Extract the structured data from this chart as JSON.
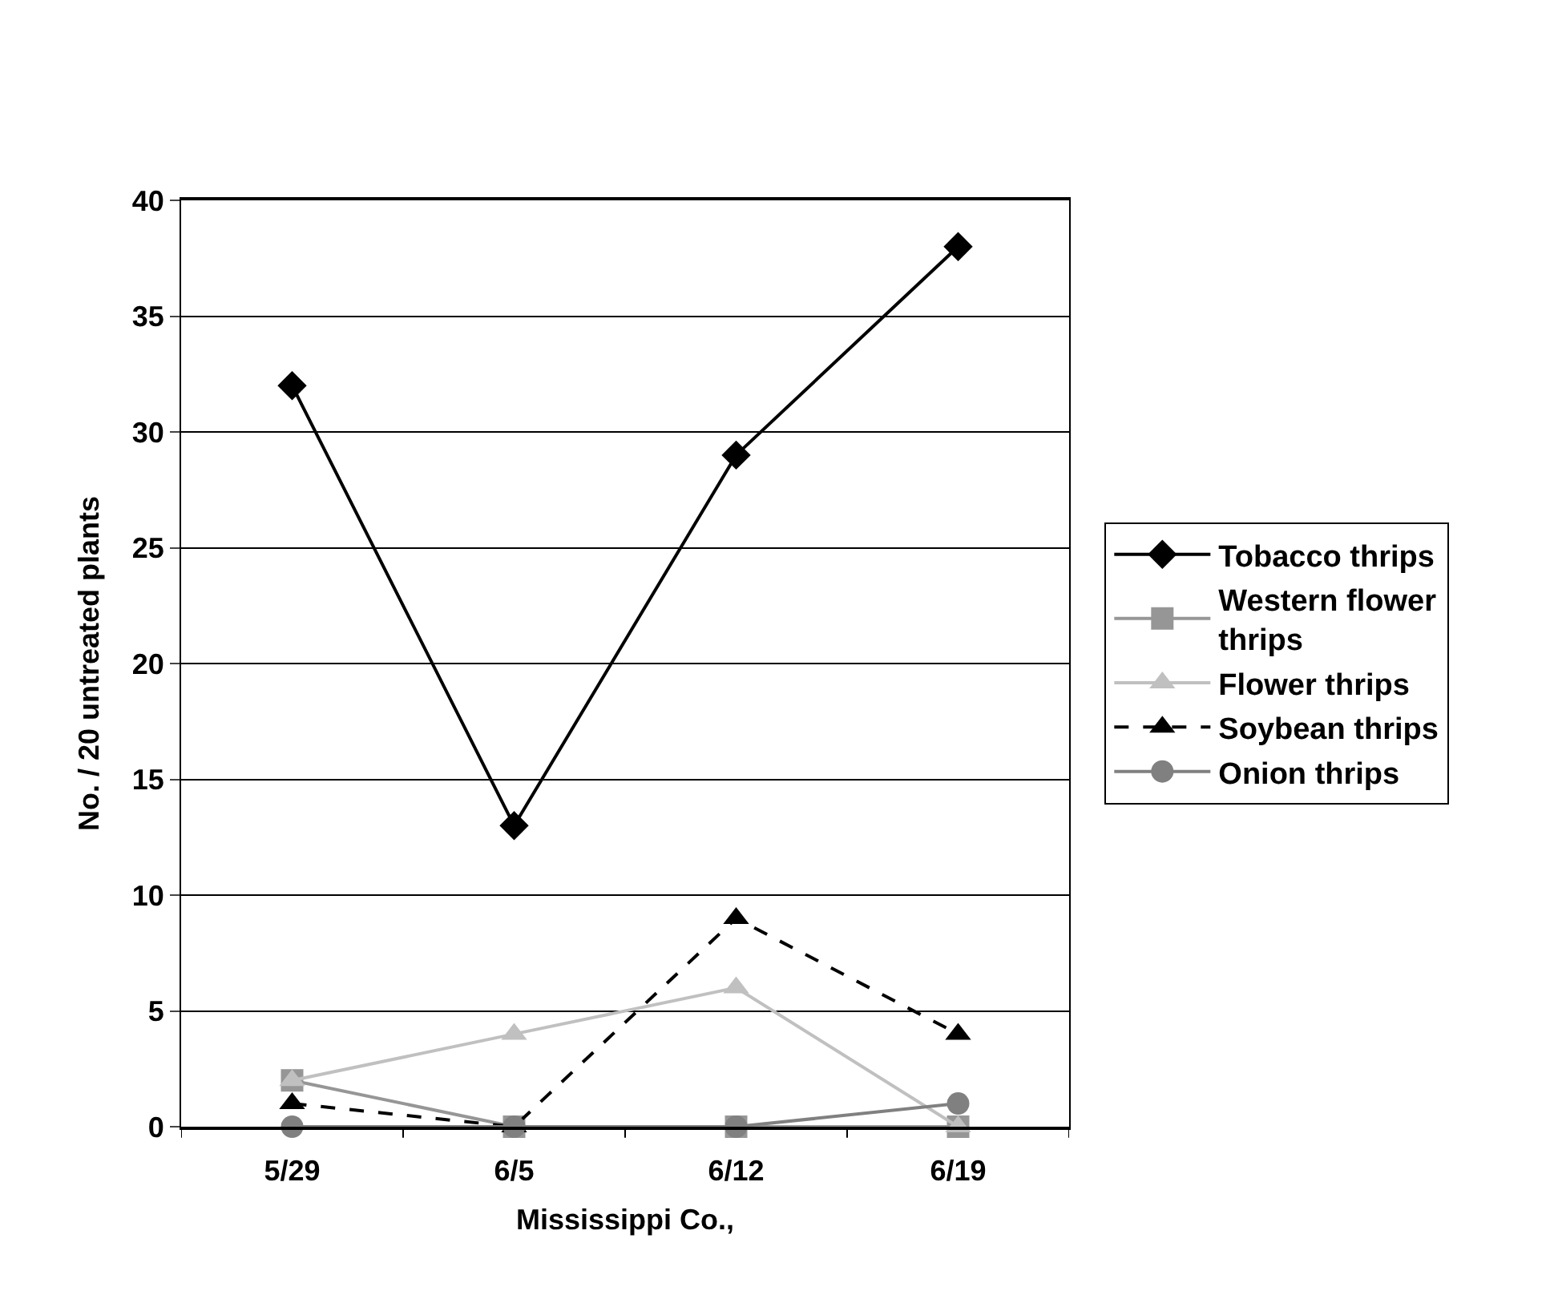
{
  "chart_data": {
    "type": "line",
    "xlabel": "Mississippi Co.,",
    "ylabel": "No. / 20 untreated plants",
    "categories": [
      "5/29",
      "6/5",
      "6/12",
      "6/19"
    ],
    "series": [
      {
        "name": "Tobacco thrips",
        "color": "#000000",
        "marker": "diamond",
        "line_style": "solid",
        "values": [
          32,
          13,
          29,
          38
        ]
      },
      {
        "name": "Western flower thrips",
        "color": "#969696",
        "marker": "square",
        "line_style": "solid",
        "values": [
          2,
          0,
          0,
          0
        ]
      },
      {
        "name": "Flower thrips",
        "color": "#c0c0c0",
        "marker": "triangle",
        "line_style": "solid",
        "values": [
          2,
          4,
          6,
          0
        ]
      },
      {
        "name": "Soybean thrips",
        "color": "#000000",
        "marker": "triangle",
        "line_style": "dashed",
        "values": [
          1,
          0,
          9,
          4
        ]
      },
      {
        "name": "Onion thrips",
        "color": "#808080",
        "marker": "circle",
        "line_style": "solid",
        "values": [
          0,
          0,
          0,
          1
        ]
      }
    ],
    "ylim": [
      0,
      40
    ],
    "yticks": [
      0,
      5,
      10,
      15,
      20,
      25,
      30,
      35,
      40
    ],
    "grid": "y",
    "legend": "right"
  }
}
